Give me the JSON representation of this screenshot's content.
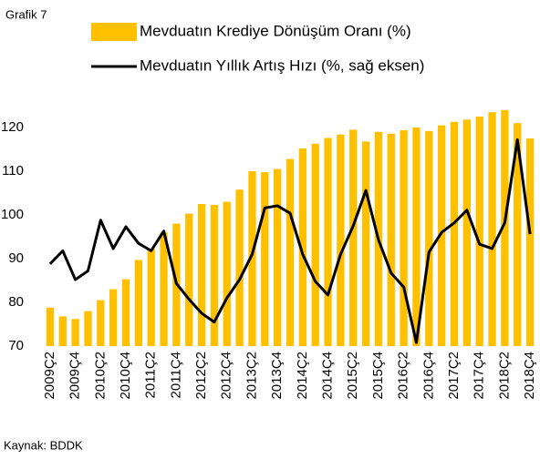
{
  "chart_data": {
    "type": "bar_line",
    "title": "Grafik 7",
    "source": "Kaynak: BDDK",
    "categories": [
      "2009Ç2",
      null,
      "2009Ç4",
      null,
      "2010Ç2",
      null,
      "2010Ç4",
      null,
      "2011Ç2",
      null,
      "2011Ç4",
      null,
      "2012Ç2",
      null,
      "2012Ç4",
      null,
      "2013Ç2",
      null,
      "2013Ç4",
      null,
      "2014Ç2",
      null,
      "2014Ç4",
      null,
      "2015Ç2",
      null,
      "2015Ç4",
      null,
      "2016Ç2",
      null,
      "2016Ç4",
      null,
      "2017Ç2",
      null,
      "2017Ç4",
      null,
      "2018Ç2",
      null,
      "2018Ç4"
    ],
    "series": [
      {
        "name": "Mevduatın Krediye Dönüşüm Oranı (%)",
        "type": "bar",
        "color": "#ffc000",
        "values": [
          78.8,
          76.8,
          76.2,
          78,
          80.5,
          83,
          85.3,
          89.7,
          92.3,
          96,
          98,
          100.3,
          102.5,
          102.3,
          103,
          105.8,
          110,
          109.8,
          110.5,
          112.8,
          115.2,
          116.3,
          117.6,
          118.4,
          119.5,
          116.8,
          119,
          118.6,
          119.4,
          120,
          119.2,
          120.5,
          121.3,
          121.8,
          122.5,
          123.5,
          124,
          121,
          117.5
        ]
      },
      {
        "name": "Mevduatın Yıllık Artış Hızı (%, sağ eksen)",
        "type": "line",
        "color": "#000000",
        "values": [
          88.8,
          91.8,
          85.2,
          87.2,
          98.8,
          92.3,
          97.3,
          93.5,
          91.8,
          96.3,
          84.3,
          80.7,
          77.5,
          75.5,
          81,
          85.2,
          91,
          101.6,
          102.1,
          100.4,
          91,
          84.8,
          81.7,
          91,
          97.5,
          105.6,
          94.3,
          86.7,
          83.5,
          70.8,
          91.5,
          96,
          98.2,
          101.1,
          93.3,
          92.3,
          98.2,
          117.2,
          95.6
        ]
      }
    ],
    "ylim": [
      70,
      125
    ],
    "yticks": [
      70,
      80,
      90,
      100,
      110,
      120
    ]
  }
}
